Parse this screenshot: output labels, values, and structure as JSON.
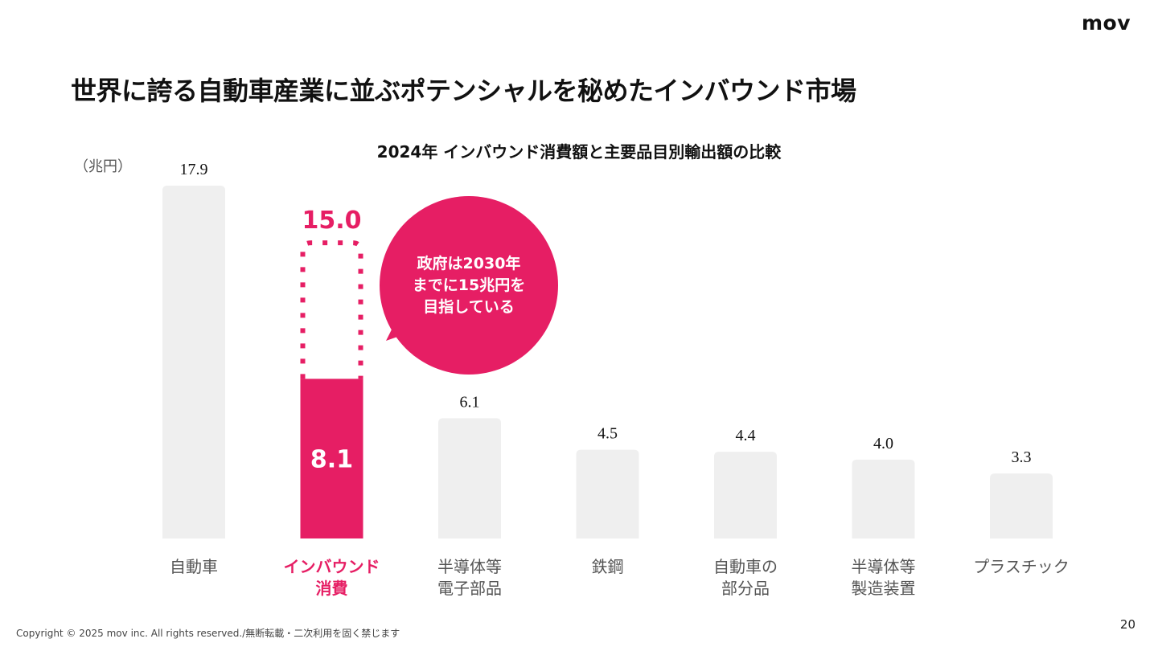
{
  "brand": {
    "logo_text": "mov"
  },
  "page_title": "世界に誇る自動車産業に並ぶポテンシャルを秘めたインバウンド市場",
  "footer": {
    "copyright": "Copyright © 2025 mov inc. All rights reserved./無断転載・二次利用を固く禁じます",
    "page_number": "20"
  },
  "colors": {
    "accent": "#E61E64",
    "bar_gray": "#EFEFEF",
    "label_gray": "#555555",
    "text_dark": "#111111"
  },
  "chart_data": {
    "type": "bar",
    "title": "2024年 インバウンド消費額と主要品目別輸出額の比較",
    "unit_label": "（兆円）",
    "ylim": [
      0,
      17.9
    ],
    "grid": false,
    "categories": [
      [
        "自動車"
      ],
      [
        "インバウンド",
        "消費"
      ],
      [
        "半導体等",
        "電子部品"
      ],
      [
        "鉄鋼"
      ],
      [
        "自動車の",
        "部分品"
      ],
      [
        "半導体等",
        "製造装置"
      ],
      [
        "プラスチック"
      ]
    ],
    "values": [
      17.9,
      8.1,
      6.1,
      4.5,
      4.4,
      4.0,
      3.3
    ],
    "value_labels": [
      "17.9",
      "8.1",
      "6.1",
      "4.5",
      "4.4",
      "4.0",
      "3.3"
    ],
    "highlight_index": 1,
    "target": {
      "index": 1,
      "value": 15.0,
      "label": "15.0"
    },
    "callout": {
      "lines": [
        "政府は2030年",
        "までに15兆円を",
        "目指している"
      ]
    }
  }
}
